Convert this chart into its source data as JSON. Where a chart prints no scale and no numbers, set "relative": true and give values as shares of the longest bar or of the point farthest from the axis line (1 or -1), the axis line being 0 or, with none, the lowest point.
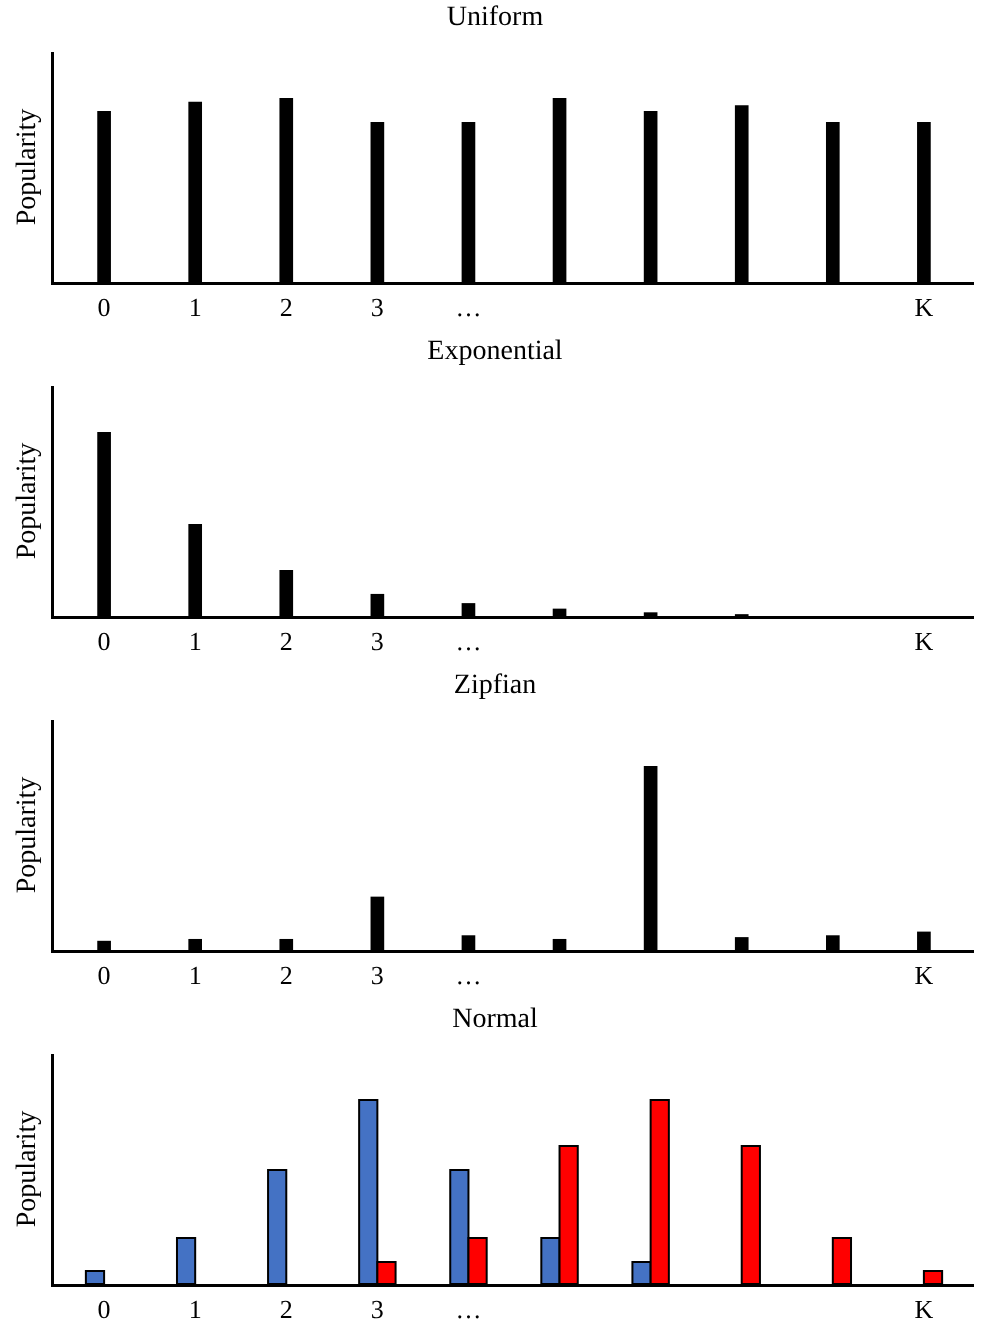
{
  "chart_data": [
    {
      "type": "bar",
      "title": "Uniform",
      "ylabel": "Popularity",
      "relative": true,
      "categories": [
        "0",
        "1",
        "2",
        "3",
        "…",
        null,
        null,
        null,
        null,
        "K"
      ],
      "series": [
        {
          "color": "#000000",
          "values": [
            0.93,
            0.98,
            1,
            0.87,
            0.87,
            1,
            0.93,
            0.96,
            0.87,
            0.87
          ]
        }
      ]
    },
    {
      "type": "bar",
      "title": "Exponential",
      "ylabel": "Popularity",
      "relative": true,
      "categories": [
        "0",
        "1",
        "2",
        "3",
        "…",
        null,
        null,
        null,
        null,
        "K"
      ],
      "series": [
        {
          "color": "#000000",
          "values": [
            1,
            0.5,
            0.25,
            0.12,
            0.07,
            0.04,
            0.02,
            0.01,
            0,
            0
          ]
        }
      ]
    },
    {
      "type": "bar",
      "title": "Zipfian",
      "ylabel": "Popularity",
      "relative": true,
      "categories": [
        "0",
        "1",
        "2",
        "3",
        "…",
        null,
        null,
        null,
        null,
        "K"
      ],
      "series": [
        {
          "color": "#000000",
          "values": [
            0.05,
            0.06,
            0.06,
            0.29,
            0.08,
            0.06,
            1,
            0.07,
            0.08,
            0.1
          ]
        }
      ]
    },
    {
      "type": "bar",
      "title": "Normal",
      "ylabel": "Popularity",
      "relative": true,
      "categories": [
        "0",
        "1",
        "2",
        "3",
        "…",
        null,
        null,
        null,
        null,
        "K"
      ],
      "series": [
        {
          "color": "#4472c4",
          "values": [
            0.07,
            0.25,
            0.62,
            1,
            0.62,
            0.25,
            0.12,
            null,
            null,
            null
          ]
        },
        {
          "color": "#ff0000",
          "values": [
            null,
            null,
            null,
            0.12,
            0.25,
            0.75,
            1,
            0.75,
            0.25,
            0.07
          ]
        }
      ]
    }
  ]
}
